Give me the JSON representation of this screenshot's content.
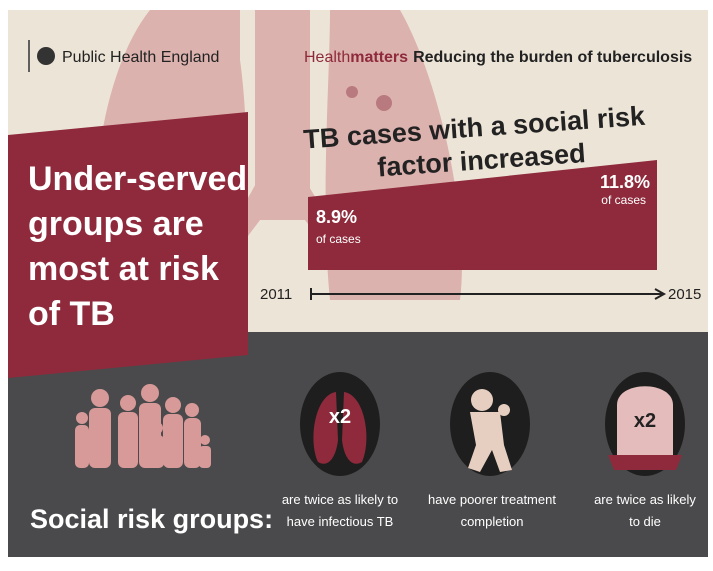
{
  "header": {
    "organisation": "Public Health England",
    "brand_light": "Health",
    "brand_bold": "matters",
    "title": "Reducing the burden of tuberculosis"
  },
  "headline": {
    "lines": [
      "Under-served",
      "groups are",
      "most at risk",
      "of TB"
    ]
  },
  "trend": {
    "title_lines": [
      "TB cases with a social risk",
      "factor increased"
    ],
    "start": {
      "value": "8.9%",
      "note": "of cases",
      "year": "2011"
    },
    "end": {
      "value": "11.8%",
      "note": "of cases",
      "year": "2015"
    }
  },
  "risk": {
    "label": "Social risk groups:",
    "items": [
      {
        "badge": "x2",
        "lines": [
          "are twice as likely to",
          "have infectious TB"
        ]
      },
      {
        "lines": [
          "have poorer treatment",
          "completion"
        ]
      },
      {
        "badge": "x2",
        "lines": [
          "are twice as likely",
          "to die"
        ]
      }
    ]
  }
}
